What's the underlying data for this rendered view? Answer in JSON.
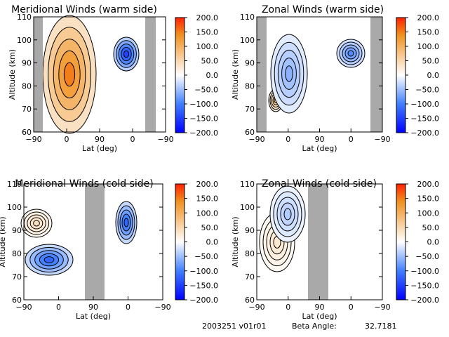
{
  "footer": {
    "date_version": "2003251 v01r01",
    "beta_label": "Beta Angle:",
    "beta_value": "32.7181"
  },
  "colorbar": {
    "ticks": [
      "200.0",
      "150.0",
      "100.0",
      "50.0",
      "0.0",
      "−50.0",
      "−100.0",
      "−150.0",
      "−200.0"
    ],
    "range": [
      -200,
      200
    ],
    "colors": {
      "negative_end": "#0000ff",
      "mid": "#ffffff",
      "positive_end": "#ff2000"
    }
  },
  "chart_data": [
    {
      "type": "heatmap",
      "title": "Meridional Winds (warm side)",
      "xlabel": "Lat (deg)",
      "ylabel": "Altitude (km)",
      "xticks": [
        "−90",
        "0",
        "90",
        "0",
        "−90"
      ],
      "yticks": [
        "60",
        "70",
        "80",
        "90",
        "100",
        "110"
      ],
      "ylim": [
        60,
        110
      ],
      "data_gap_color": "#a9a9a9",
      "features": [
        {
          "sign": "positive",
          "peak_value": 150,
          "altitude_range_km": [
            65,
            110
          ]
        },
        {
          "sign": "negative",
          "peak_value": -150,
          "altitude_range_km": [
            85,
            105
          ]
        }
      ]
    },
    {
      "type": "heatmap",
      "title": "Zonal Winds (warm side)",
      "xlabel": "Lat (deg)",
      "ylabel": "Altitude (km)",
      "xticks": [
        "−90",
        "0",
        "90",
        "0",
        "−90"
      ],
      "yticks": [
        "60",
        "70",
        "80",
        "90",
        "100",
        "110"
      ],
      "ylim": [
        60,
        110
      ],
      "data_gap_color": "#a9a9a9",
      "features": [
        {
          "sign": "positive",
          "peak_value": 80,
          "altitude_range_km": [
            68,
            80
          ]
        },
        {
          "sign": "negative",
          "peak_value": -60,
          "altitude_range_km": [
            68,
            110
          ]
        },
        {
          "sign": "negative",
          "peak_value": -90,
          "altitude_range_km": [
            86,
            102
          ]
        }
      ]
    },
    {
      "type": "heatmap",
      "title": "Meridional Winds (cold side)",
      "xlabel": "Lat (deg)",
      "ylabel": "Altitude (km)",
      "xticks": [
        "−90",
        "0",
        "90",
        "0",
        "−90"
      ],
      "yticks": [
        "60",
        "70",
        "80",
        "90",
        "100",
        "110"
      ],
      "ylim": [
        60,
        110
      ],
      "data_gap_color": "#a9a9a9",
      "features": [
        {
          "sign": "negative",
          "peak_value": -120,
          "altitude_range_km": [
            70,
            86
          ]
        },
        {
          "sign": "positive",
          "peak_value": 40,
          "altitude_range_km": [
            88,
            102
          ]
        },
        {
          "sign": "negative",
          "peak_value": -120,
          "altitude_range_km": [
            84,
            104
          ]
        }
      ]
    },
    {
      "type": "heatmap",
      "title": "Zonal Winds (cold side)",
      "xlabel": "Lat (deg)",
      "ylabel": "Altitude (km)",
      "xticks": [
        "−90",
        "0",
        "90",
        "0",
        "−90"
      ],
      "yticks": [
        "60",
        "70",
        "80",
        "90",
        "100",
        "110"
      ],
      "ylim": [
        60,
        110
      ],
      "data_gap_color": "#a9a9a9",
      "features": [
        {
          "sign": "positive",
          "peak_value": 30,
          "altitude_range_km": [
            68,
            98
          ]
        },
        {
          "sign": "negative",
          "peak_value": -40,
          "altitude_range_km": [
            80,
            110
          ]
        }
      ]
    }
  ]
}
